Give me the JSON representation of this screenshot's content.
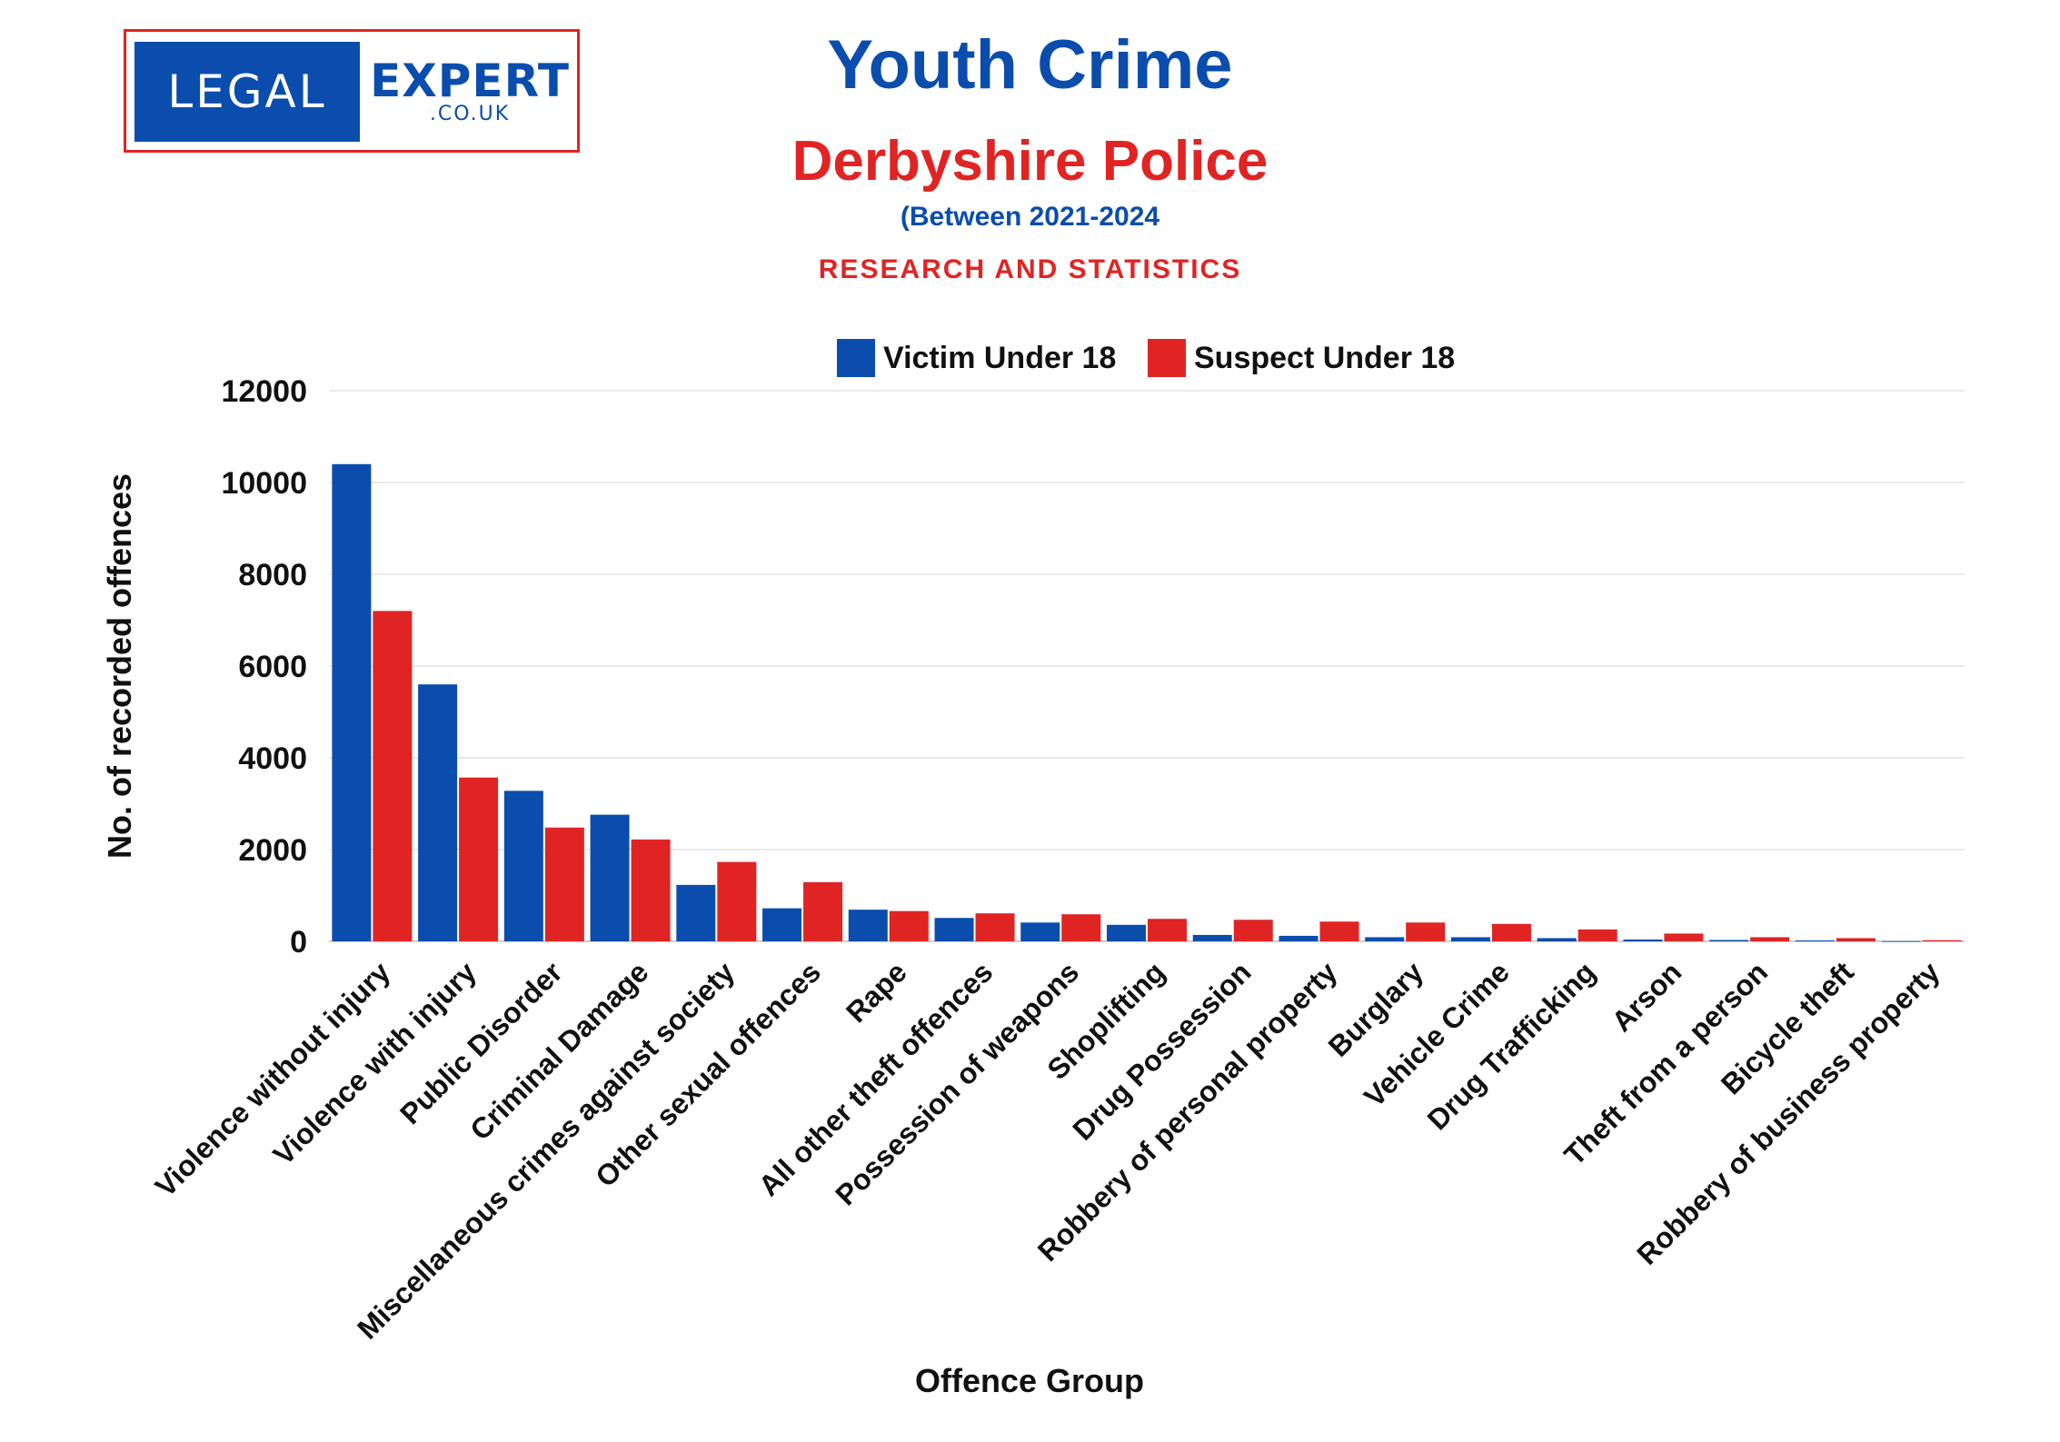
{
  "logo": {
    "word_left": "LEGAL",
    "word_right": "EXPERT",
    "domain": ".CO.UK"
  },
  "header": {
    "title": "Youth Crime",
    "subtitle": "Derbyshire Police",
    "period": "(Between 2021-2024",
    "tagline": "RESEARCH AND STATISTICS"
  },
  "colors": {
    "victim": "#0a4dad",
    "suspect": "#e02424",
    "title_blue": "#0a4dad",
    "title_red": "#e02424"
  },
  "chart_data": {
    "type": "bar",
    "title": "",
    "xlabel": "Offence Group",
    "ylabel": "No. of recorded offences",
    "ylim": [
      0,
      12000
    ],
    "yticks": [
      0,
      2000,
      4000,
      6000,
      8000,
      10000,
      12000
    ],
    "legend_position": "top-center",
    "grid": true,
    "categories": [
      "Violence without injury",
      "Violence with injury",
      "Public Disorder",
      "Criminal Damage",
      "Miscellaneous crimes against society",
      "Other sexual offences",
      "Rape",
      "All other theft offences",
      "Possession of weapons",
      "Shoplifting",
      "Drug Possession",
      "Robbery of personal property",
      "Burglary",
      "Vehicle Crime",
      "Drug Trafficking",
      "Arson",
      "Theft from a person",
      "Bicycle theft",
      "Robbery of business property"
    ],
    "series": [
      {
        "name": "Victim Under 18",
        "values": [
          10400,
          5600,
          3280,
          2760,
          1230,
          720,
          690,
          510,
          410,
          360,
          140,
          120,
          90,
          90,
          70,
          40,
          30,
          20,
          5
        ]
      },
      {
        "name": "Suspect Under 18",
        "values": [
          7200,
          3570,
          2480,
          2220,
          1730,
          1290,
          660,
          610,
          590,
          490,
          470,
          430,
          410,
          380,
          260,
          170,
          90,
          70,
          25
        ]
      }
    ]
  }
}
